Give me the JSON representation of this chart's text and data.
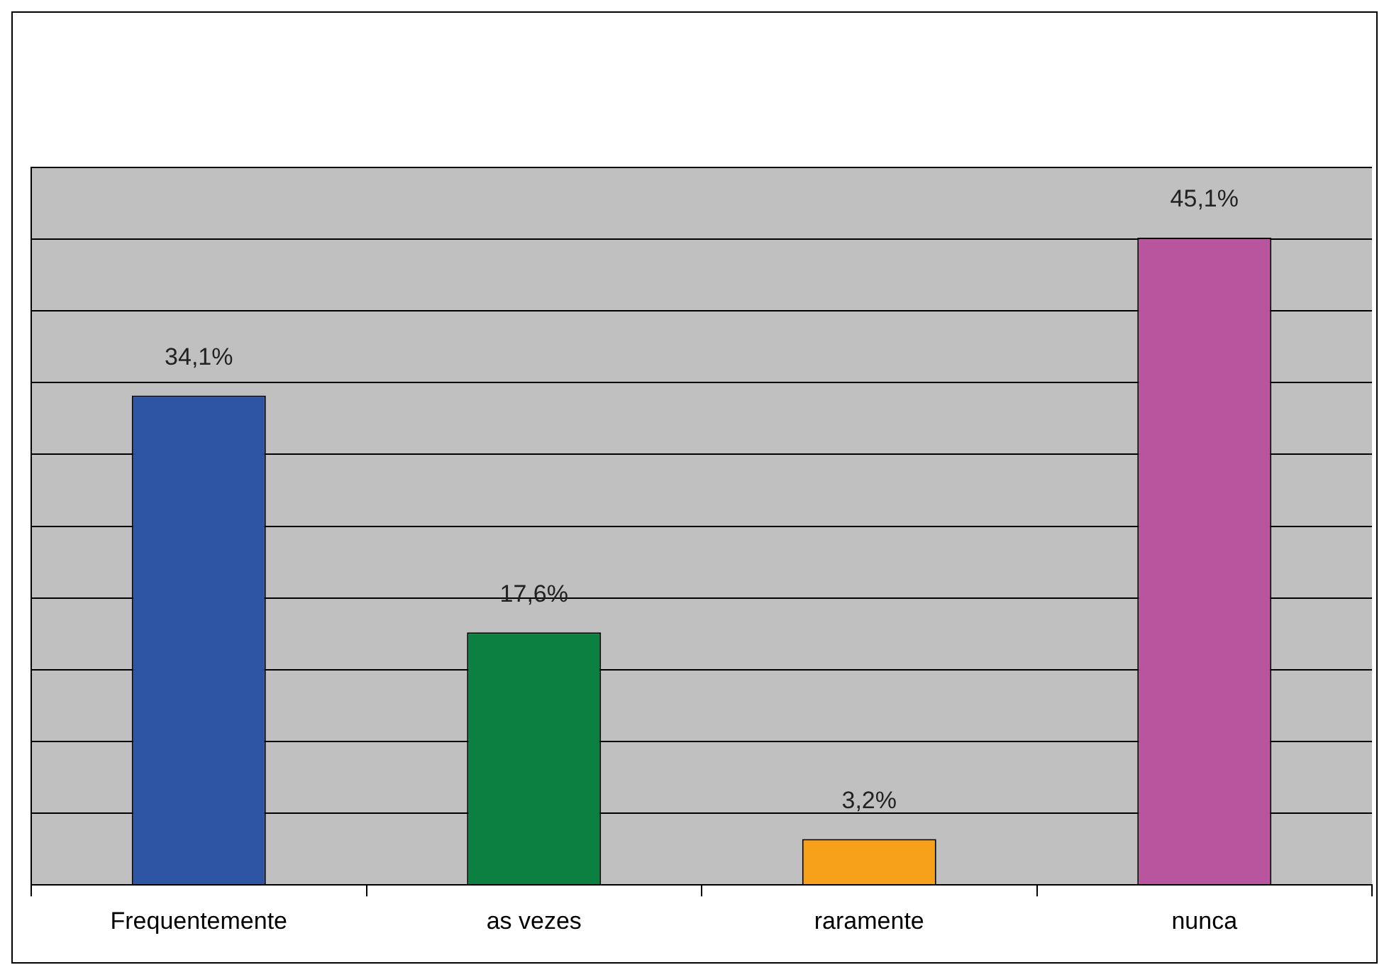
{
  "chart_data": {
    "type": "bar",
    "categories": [
      "Frequentemente",
      "as vezes",
      "raramente",
      "nunca"
    ],
    "values": [
      34.1,
      17.6,
      3.2,
      45.1
    ],
    "colors": [
      "#2e54a4",
      "#0b8040",
      "#f7a11a",
      "#b8559e"
    ],
    "value_labels": [
      "34,1%",
      "17,6%",
      "3,2%",
      "45,1%"
    ],
    "ylim": [
      0,
      50
    ],
    "yticks": [
      {
        "value": 0,
        "label": null
      },
      {
        "value": 5,
        "label": null
      },
      {
        "value": 10,
        "label": null
      },
      {
        "value": 15,
        "label": null
      },
      {
        "value": 20,
        "label": null
      },
      {
        "value": 25,
        "label": null
      },
      {
        "value": 30,
        "label": null
      },
      {
        "value": 35,
        "label": null
      },
      {
        "value": 40,
        "label": null
      },
      {
        "value": 45,
        "label": null
      },
      {
        "value": 50,
        "label": null
      }
    ],
    "grid": "y",
    "tick_labels": "x"
  }
}
